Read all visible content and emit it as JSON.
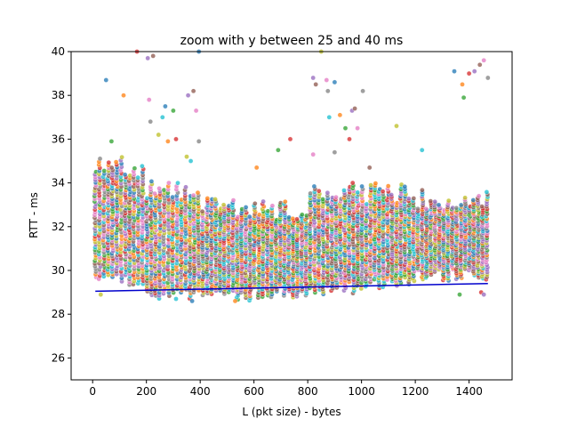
{
  "chart_data": {
    "type": "scatter",
    "title": "zoom with y between 25 and 40 ms",
    "xlabel": "L (pkt size) - bytes",
    "ylabel": "RTT - ms",
    "xlim": [
      -80,
      1560
    ],
    "ylim": [
      25,
      40
    ],
    "xticks": [
      0,
      200,
      400,
      600,
      800,
      1000,
      1200,
      1400
    ],
    "yticks": [
      26,
      28,
      30,
      32,
      34,
      36,
      38,
      40
    ],
    "grid": false,
    "legend": "none",
    "palette": [
      "#1f77b4",
      "#ff7f0e",
      "#2ca02c",
      "#d62728",
      "#9467bd",
      "#8c564b",
      "#e377c2",
      "#7f7f7f",
      "#bcbd22",
      "#17becf"
    ],
    "columns": {
      "x_start": 10,
      "x_end": 1470,
      "x_step": 16,
      "note_values": "per-column RTT band [low, high] in ms"
    },
    "bands": [
      {
        "x_from": 0,
        "x_to": 200,
        "low": 29.6,
        "high": 34.7
      },
      {
        "x_from": 200,
        "x_to": 400,
        "low": 29.0,
        "high": 33.6
      },
      {
        "x_from": 400,
        "x_to": 600,
        "low": 28.8,
        "high": 32.8
      },
      {
        "x_from": 600,
        "x_to": 800,
        "low": 29.0,
        "high": 32.7
      },
      {
        "x_from": 800,
        "x_to": 1000,
        "low": 29.2,
        "high": 33.6
      },
      {
        "x_from": 1000,
        "x_to": 1200,
        "low": 29.4,
        "high": 33.5
      },
      {
        "x_from": 1200,
        "x_to": 1480,
        "low": 29.8,
        "high": 33.2
      }
    ],
    "outliers": [
      {
        "x": 50,
        "y": 38.7
      },
      {
        "x": 115,
        "y": 38.0
      },
      {
        "x": 70,
        "y": 35.9
      },
      {
        "x": 165,
        "y": 40.0
      },
      {
        "x": 205,
        "y": 39.7
      },
      {
        "x": 225,
        "y": 39.8
      },
      {
        "x": 210,
        "y": 37.8
      },
      {
        "x": 215,
        "y": 36.8
      },
      {
        "x": 245,
        "y": 36.2
      },
      {
        "x": 260,
        "y": 37.0
      },
      {
        "x": 270,
        "y": 37.5
      },
      {
        "x": 280,
        "y": 35.9
      },
      {
        "x": 300,
        "y": 37.3
      },
      {
        "x": 310,
        "y": 36.0
      },
      {
        "x": 355,
        "y": 38.0
      },
      {
        "x": 375,
        "y": 38.2
      },
      {
        "x": 385,
        "y": 37.3
      },
      {
        "x": 395,
        "y": 35.9
      },
      {
        "x": 350,
        "y": 35.2
      },
      {
        "x": 365,
        "y": 35.0
      },
      {
        "x": 395,
        "y": 40.0
      },
      {
        "x": 610,
        "y": 34.7
      },
      {
        "x": 690,
        "y": 35.5
      },
      {
        "x": 735,
        "y": 36.0
      },
      {
        "x": 820,
        "y": 38.8
      },
      {
        "x": 830,
        "y": 38.5
      },
      {
        "x": 870,
        "y": 38.7
      },
      {
        "x": 875,
        "y": 38.2
      },
      {
        "x": 850,
        "y": 40.0
      },
      {
        "x": 880,
        "y": 37.0
      },
      {
        "x": 900,
        "y": 38.6
      },
      {
        "x": 920,
        "y": 37.1
      },
      {
        "x": 940,
        "y": 36.5
      },
      {
        "x": 955,
        "y": 36.0
      },
      {
        "x": 965,
        "y": 37.3
      },
      {
        "x": 975,
        "y": 37.4
      },
      {
        "x": 985,
        "y": 36.5
      },
      {
        "x": 1005,
        "y": 38.2
      },
      {
        "x": 1130,
        "y": 36.6
      },
      {
        "x": 1225,
        "y": 35.5
      },
      {
        "x": 1345,
        "y": 39.1
      },
      {
        "x": 1375,
        "y": 38.5
      },
      {
        "x": 1380,
        "y": 37.9
      },
      {
        "x": 1400,
        "y": 39.0
      },
      {
        "x": 1420,
        "y": 39.1
      },
      {
        "x": 1440,
        "y": 39.4
      },
      {
        "x": 1455,
        "y": 39.6
      },
      {
        "x": 1470,
        "y": 38.8
      },
      {
        "x": 30,
        "y": 28.9
      },
      {
        "x": 310,
        "y": 28.7
      },
      {
        "x": 370,
        "y": 28.6
      },
      {
        "x": 530,
        "y": 28.6
      },
      {
        "x": 1365,
        "y": 28.9
      },
      {
        "x": 1445,
        "y": 29.0
      },
      {
        "x": 1455,
        "y": 28.9
      },
      {
        "x": 1030,
        "y": 34.7
      },
      {
        "x": 820,
        "y": 35.3
      },
      {
        "x": 900,
        "y": 35.4
      }
    ],
    "fit_line": {
      "color": "#0000cc",
      "points": [
        {
          "x": 10,
          "y": 29.05
        },
        {
          "x": 1470,
          "y": 29.4
        }
      ]
    }
  }
}
